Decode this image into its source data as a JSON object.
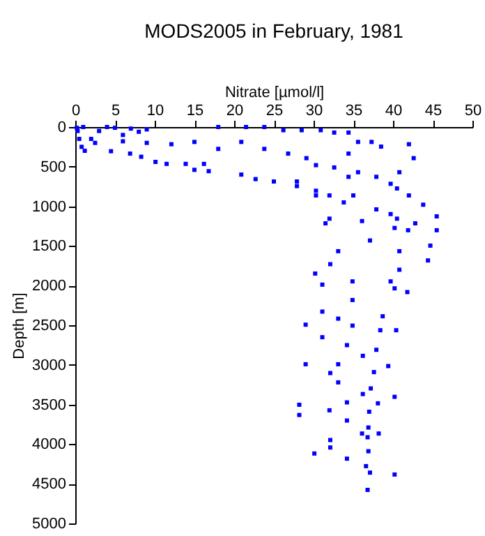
{
  "chart_data": {
    "type": "scatter",
    "title": "MODS2005 in February, 1981",
    "xlabel": "Nitrate [µmol/l]",
    "ylabel": "Depth [m]",
    "x": [
      0.2,
      1,
      0.3,
      0.5,
      0.8,
      1.2,
      2,
      3,
      4,
      5,
      6,
      7,
      8,
      9,
      2.5,
      6,
      9,
      4.5,
      6.9,
      8.3,
      10.1,
      11.5,
      13.9,
      15,
      16.8,
      16.2,
      20.9,
      22.7,
      25,
      27.9,
      30.3,
      18,
      21.5,
      23.8,
      26.2,
      28.5,
      30.9,
      32.6,
      34.4,
      12.1,
      15,
      18,
      20.9,
      23.8,
      26.8,
      29.1,
      30.3,
      32.6,
      34.4,
      35.6,
      37.3,
      38.5,
      34.4,
      35.6,
      37.9,
      40.8,
      42.6,
      42,
      39.7,
      40.5,
      42,
      43.8,
      45.5,
      39.7,
      40.5,
      42.8,
      32,
      31.5,
      36.1,
      37.9,
      33.8,
      30.3,
      27.9,
      32,
      35,
      45.5,
      40.2,
      41.9,
      40.8,
      40.8,
      40.2,
      39.7,
      41.8,
      44.4,
      44.7,
      37.1,
      33.1,
      32.1,
      30.2,
      31.1,
      34.9,
      34.9,
      31.1,
      33.1,
      29,
      34.9,
      38.7,
      38.4,
      40.4,
      31.1,
      34.2,
      37.9,
      36.2,
      29,
      33.1,
      39.4,
      37.6,
      32.1,
      33.1,
      37.2,
      36.2,
      40.2,
      28.2,
      32,
      34.2,
      38.1,
      28.2,
      34.2,
      37,
      36.9,
      36.1,
      38.2,
      36.8,
      32.1,
      32.1,
      30.1,
      36.9,
      34.2,
      36.6,
      37.1,
      40.2,
      36.8
    ],
    "values": [
      10,
      0,
      50,
      150,
      250,
      300,
      150,
      50,
      0,
      10,
      100,
      20,
      60,
      30,
      200,
      180,
      200,
      305,
      335,
      375,
      440,
      465,
      465,
      540,
      557,
      465,
      600,
      657,
      687,
      745,
      863,
      0,
      0,
      0,
      40,
      40,
      40,
      70,
      70,
      217,
      188,
      276,
      188,
      276,
      335,
      393,
      481,
      510,
      335,
      188,
      188,
      247,
      628,
      570,
      628,
      570,
      393,
      217,
      716,
      775,
      863,
      980,
      1127,
      1098,
      1156,
      1215,
      1156,
      1215,
      1186,
      1039,
      951,
      804,
      687,
      863,
      863,
      1302,
      1273,
      1302,
      1566,
      1800,
      2035,
      1947,
      2082,
      1683,
      1496,
      1431,
      1566,
      1730,
      1848,
      1988,
      1947,
      2182,
      2328,
      2417,
      2493,
      2505,
      2387,
      2563,
      2563,
      2651,
      2751,
      2810,
      2886,
      2992,
      2992,
      3015,
      3091,
      3103,
      3221,
      3297,
      3368,
      3403,
      3503,
      3573,
      3473,
      3485,
      3632,
      3702,
      3591,
      3790,
      3866,
      3866,
      3913,
      3948,
      4042,
      4118,
      4089,
      4183,
      4277,
      4359,
      4383,
      4577
    ],
    "color": "#0000ff",
    "marker": "square",
    "xlim": [
      0,
      50
    ],
    "xticks": [
      0,
      5,
      10,
      15,
      20,
      25,
      30,
      35,
      40,
      45,
      50
    ],
    "ylim": [
      5000,
      0
    ],
    "yticks": [
      0,
      500,
      1000,
      1500,
      2000,
      2500,
      3000,
      3500,
      4000,
      4500,
      5000
    ],
    "grid": false
  }
}
